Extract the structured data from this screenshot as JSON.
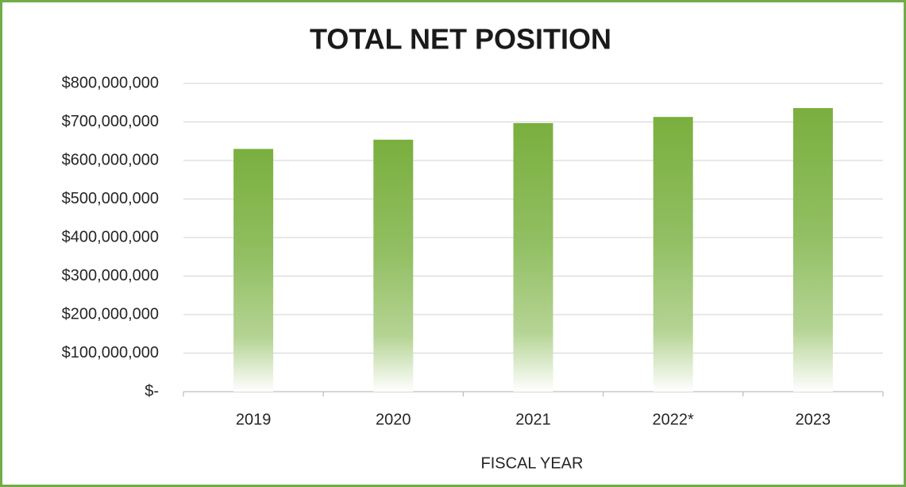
{
  "chart_data": {
    "type": "bar",
    "title": "TOTAL NET POSITION",
    "x_label": "FISCAL YEAR",
    "categories": [
      "2019",
      "2020",
      "2021",
      "2022*",
      "2023"
    ],
    "values": [
      630000000,
      654000000,
      697000000,
      713000000,
      736000000
    ],
    "color": "#7aaf3e",
    "ylim": [
      0,
      800000000
    ],
    "yticks": [
      {
        "value": 0,
        "label": "$-"
      },
      {
        "value": 100000000,
        "label": "$100,000,000"
      },
      {
        "value": 200000000,
        "label": "$200,000,000"
      },
      {
        "value": 300000000,
        "label": "$300,000,000"
      },
      {
        "value": 400000000,
        "label": "$400,000,000"
      },
      {
        "value": 500000000,
        "label": "$500,000,000"
      },
      {
        "value": 600000000,
        "label": "$600,000,000"
      },
      {
        "value": 700000000,
        "label": "$700,000,000"
      },
      {
        "value": 800000000,
        "label": "$800,000,000"
      }
    ],
    "grid": true
  }
}
